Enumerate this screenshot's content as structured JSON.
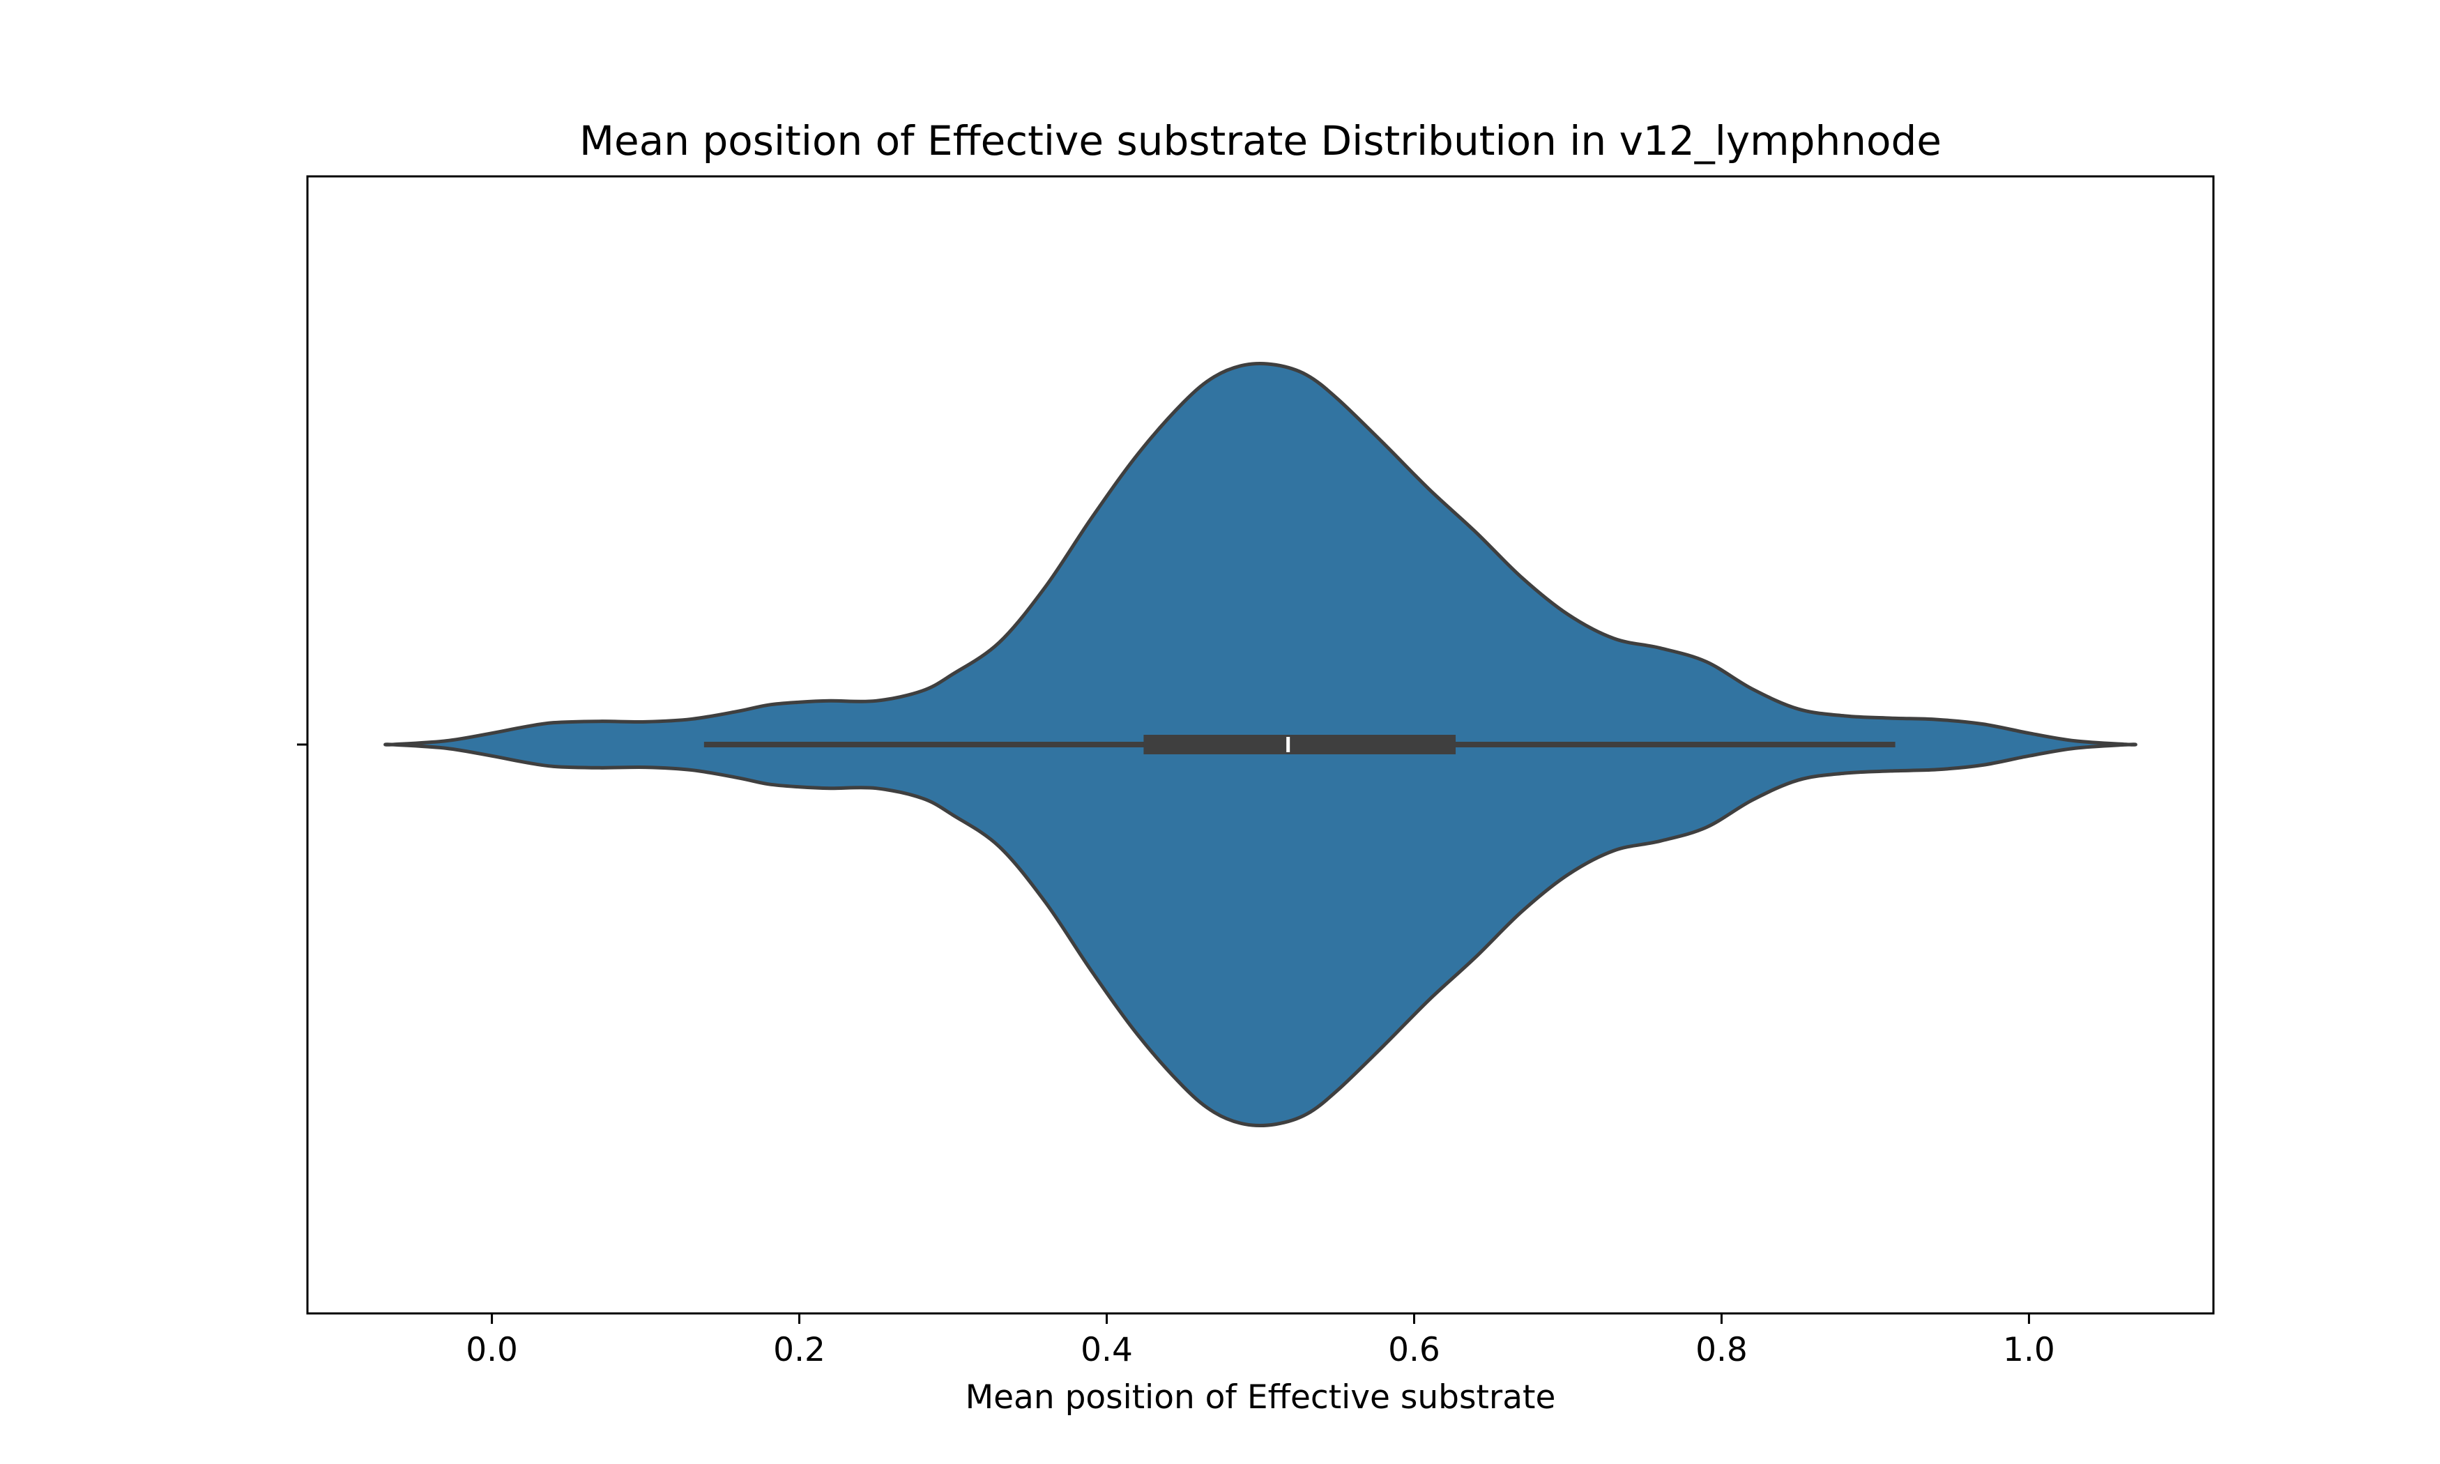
{
  "chart_data": {
    "type": "violin",
    "title": "Mean position of Effective substrate Distribution in v12_lymphnode",
    "xlabel": "Mean position of Effective substrate",
    "ylabel": "",
    "orientation": "horizontal",
    "xlim": [
      -0.12,
      1.12
    ],
    "xticks": [
      0.0,
      0.2,
      0.4,
      0.6,
      0.8,
      1.0
    ],
    "xtick_labels": [
      "0.0",
      "0.2",
      "0.4",
      "0.6",
      "0.8",
      "1.0"
    ],
    "fill_color": "#3274a1",
    "edge_color": "#3f3f3f",
    "grid": false,
    "density": {
      "x": [
        -0.065,
        -0.03,
        0.0,
        0.02,
        0.04,
        0.07,
        0.1,
        0.13,
        0.16,
        0.18,
        0.2,
        0.22,
        0.25,
        0.28,
        0.3,
        0.33,
        0.36,
        0.39,
        0.42,
        0.45,
        0.47,
        0.49,
        0.51,
        0.53,
        0.55,
        0.58,
        0.61,
        0.64,
        0.67,
        0.7,
        0.73,
        0.76,
        0.79,
        0.82,
        0.85,
        0.88,
        0.91,
        0.94,
        0.97,
        1.0,
        1.03,
        1.065
      ],
      "half_width": [
        0.0,
        0.008,
        0.025,
        0.038,
        0.048,
        0.051,
        0.05,
        0.056,
        0.073,
        0.087,
        0.093,
        0.096,
        0.096,
        0.118,
        0.155,
        0.224,
        0.346,
        0.497,
        0.637,
        0.752,
        0.808,
        0.834,
        0.834,
        0.812,
        0.76,
        0.662,
        0.56,
        0.467,
        0.367,
        0.286,
        0.233,
        0.212,
        0.182,
        0.122,
        0.078,
        0.063,
        0.058,
        0.055,
        0.045,
        0.025,
        0.008,
        0.0
      ]
    },
    "box": {
      "whisker_low": 0.138,
      "q1": 0.424,
      "median": 0.518,
      "q3": 0.627,
      "whisker_high": 0.913
    }
  }
}
